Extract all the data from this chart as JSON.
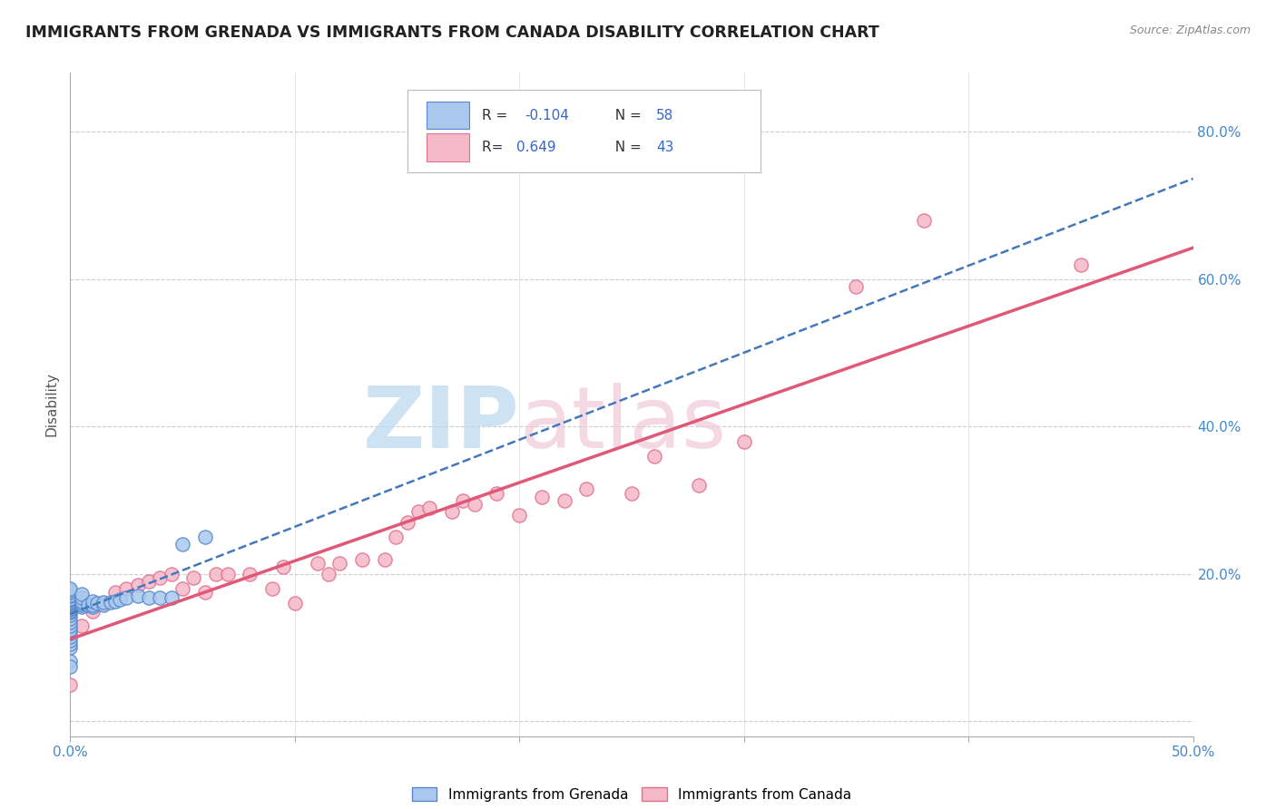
{
  "title": "IMMIGRANTS FROM GRENADA VS IMMIGRANTS FROM CANADA DISABILITY CORRELATION CHART",
  "source": "Source: ZipAtlas.com",
  "ylabel": "Disability",
  "xlim": [
    0.0,
    0.5
  ],
  "ylim": [
    -0.02,
    0.88
  ],
  "grenada_color": "#aac8ee",
  "grenada_edge_color": "#5588cc",
  "canada_color": "#f5b8c8",
  "canada_edge_color": "#e07090",
  "grenada_line_color": "#4477bb",
  "canada_line_color": "#e05878",
  "background_color": "#ffffff",
  "grid_color": "#cccccc",
  "grenada_scatter_x": [
    0.0,
    0.0,
    0.0,
    0.0,
    0.0,
    0.0,
    0.0,
    0.0,
    0.0,
    0.0,
    0.0,
    0.0,
    0.0,
    0.0,
    0.0,
    0.0,
    0.0,
    0.0,
    0.0,
    0.0,
    0.0,
    0.0,
    0.0,
    0.0,
    0.0,
    0.0,
    0.0,
    0.0,
    0.0,
    0.0,
    0.0,
    0.0,
    0.0,
    0.0,
    0.0,
    0.005,
    0.005,
    0.005,
    0.005,
    0.005,
    0.005,
    0.008,
    0.01,
    0.01,
    0.01,
    0.012,
    0.015,
    0.015,
    0.018,
    0.02,
    0.022,
    0.025,
    0.03,
    0.035,
    0.04,
    0.045,
    0.05,
    0.06
  ],
  "grenada_scatter_y": [
    0.1,
    0.105,
    0.11,
    0.115,
    0.12,
    0.125,
    0.13,
    0.135,
    0.14,
    0.145,
    0.148,
    0.15,
    0.15,
    0.152,
    0.153,
    0.155,
    0.155,
    0.155,
    0.157,
    0.158,
    0.16,
    0.16,
    0.16,
    0.162,
    0.163,
    0.165,
    0.165,
    0.167,
    0.17,
    0.172,
    0.175,
    0.178,
    0.18,
    0.082,
    0.075,
    0.155,
    0.158,
    0.16,
    0.163,
    0.168,
    0.173,
    0.158,
    0.155,
    0.158,
    0.163,
    0.16,
    0.158,
    0.162,
    0.162,
    0.163,
    0.165,
    0.168,
    0.17,
    0.168,
    0.168,
    0.168,
    0.24,
    0.25
  ],
  "canada_scatter_x": [
    0.0,
    0.005,
    0.01,
    0.015,
    0.02,
    0.025,
    0.03,
    0.035,
    0.04,
    0.045,
    0.05,
    0.055,
    0.06,
    0.065,
    0.07,
    0.08,
    0.09,
    0.095,
    0.1,
    0.11,
    0.115,
    0.12,
    0.13,
    0.14,
    0.145,
    0.15,
    0.155,
    0.16,
    0.17,
    0.175,
    0.18,
    0.19,
    0.2,
    0.21,
    0.22,
    0.23,
    0.25,
    0.26,
    0.28,
    0.3,
    0.35,
    0.38,
    0.45
  ],
  "canada_scatter_y": [
    0.05,
    0.13,
    0.15,
    0.16,
    0.175,
    0.18,
    0.185,
    0.19,
    0.195,
    0.2,
    0.18,
    0.195,
    0.175,
    0.2,
    0.2,
    0.2,
    0.18,
    0.21,
    0.16,
    0.215,
    0.2,
    0.215,
    0.22,
    0.22,
    0.25,
    0.27,
    0.285,
    0.29,
    0.285,
    0.3,
    0.295,
    0.31,
    0.28,
    0.305,
    0.3,
    0.315,
    0.31,
    0.36,
    0.32,
    0.38,
    0.59,
    0.68,
    0.62
  ],
  "grenada_R": -0.104,
  "grenada_N": 58,
  "canada_R": 0.649,
  "canada_N": 43
}
